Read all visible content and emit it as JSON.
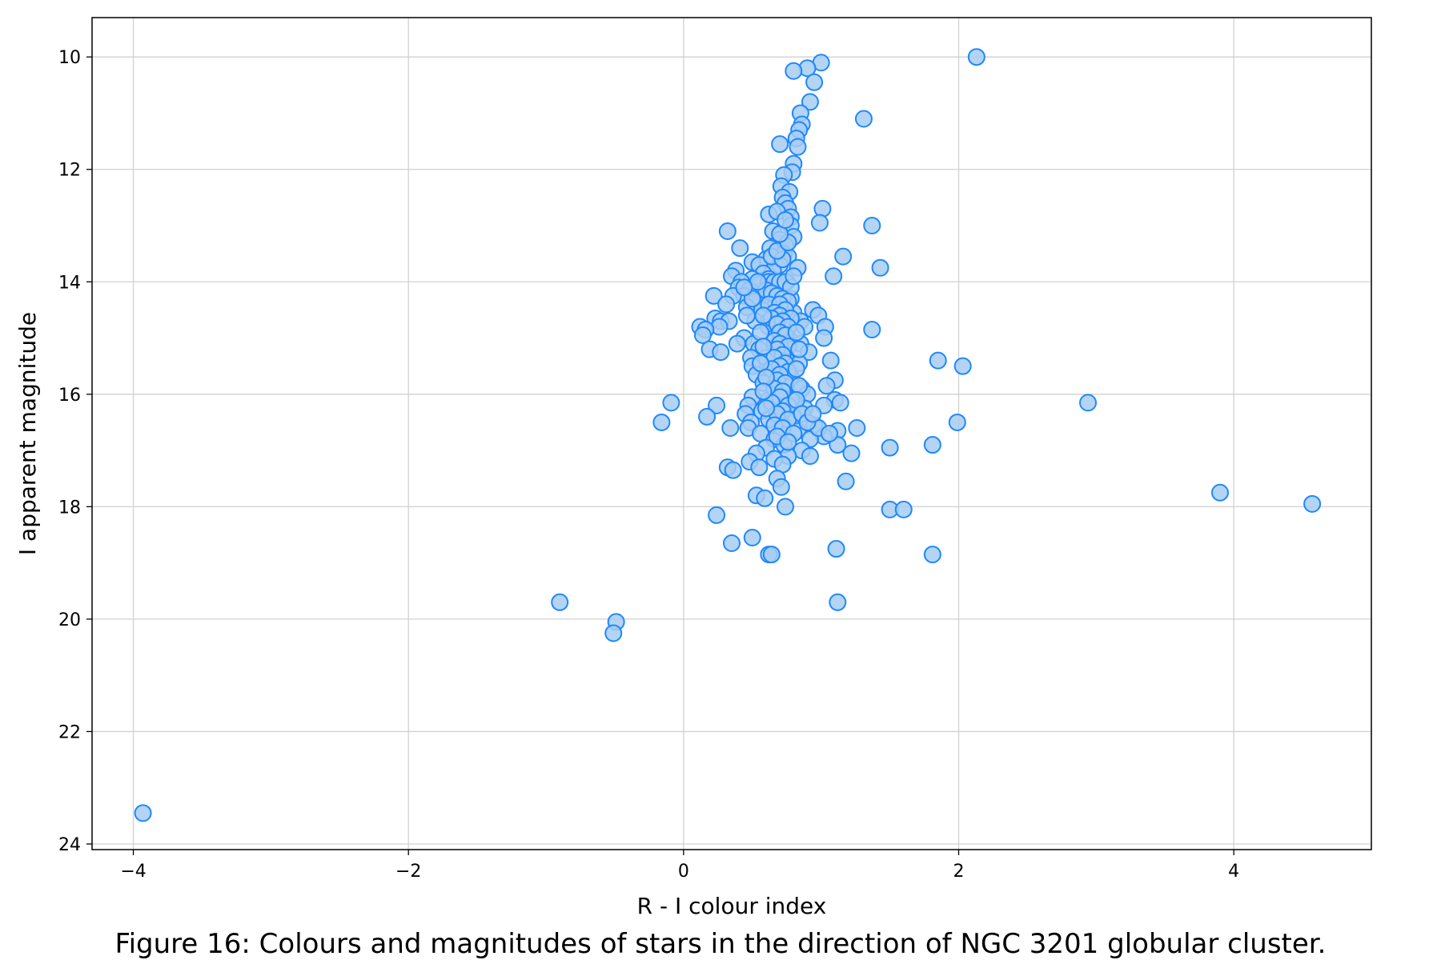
{
  "caption": "Figure 16: Colours and magnitudes of stars in the direction of NGC 3201 globular cluster.",
  "colors": {
    "marker_fill": "#a7cdf2",
    "marker_edge": "#1e88ff",
    "grid": "#d0d0d0",
    "axis": "#000000"
  },
  "chart_data": {
    "type": "scatter",
    "xlabel": "R - I colour index",
    "ylabel": "I apparent magnitude",
    "xlim": [
      -4.3,
      5.0
    ],
    "ylim": [
      24.1,
      9.3
    ],
    "y_inverted": true,
    "grid": true,
    "xticks": [
      -4,
      -2,
      0,
      2,
      4
    ],
    "xtick_labels": [
      "−4",
      "−2",
      "0",
      "2",
      "4"
    ],
    "yticks": [
      10,
      12,
      14,
      16,
      18,
      20,
      22,
      24
    ],
    "ytick_labels": [
      "10",
      "12",
      "14",
      "16",
      "18",
      "20",
      "22",
      "24"
    ],
    "points": [
      [
        2.13,
        10.0
      ],
      [
        1.0,
        10.1
      ],
      [
        0.9,
        10.2
      ],
      [
        0.8,
        10.25
      ],
      [
        0.95,
        10.45
      ],
      [
        0.92,
        10.8
      ],
      [
        0.85,
        11.0
      ],
      [
        1.31,
        11.1
      ],
      [
        0.86,
        11.2
      ],
      [
        0.84,
        11.3
      ],
      [
        0.82,
        11.45
      ],
      [
        0.83,
        11.6
      ],
      [
        0.7,
        11.55
      ],
      [
        0.8,
        11.9
      ],
      [
        0.79,
        12.05
      ],
      [
        0.73,
        12.1
      ],
      [
        0.71,
        12.3
      ],
      [
        0.77,
        12.4
      ],
      [
        0.72,
        12.5
      ],
      [
        0.74,
        12.6
      ],
      [
        0.76,
        12.7
      ],
      [
        1.01,
        12.7
      ],
      [
        0.62,
        12.8
      ],
      [
        0.68,
        12.75
      ],
      [
        0.78,
        12.85
      ],
      [
        0.99,
        12.95
      ],
      [
        1.37,
        13.0
      ],
      [
        0.78,
        13.0
      ],
      [
        0.32,
        13.1
      ],
      [
        0.65,
        13.1
      ],
      [
        0.8,
        13.2
      ],
      [
        0.7,
        13.25
      ],
      [
        0.74,
        13.35
      ],
      [
        0.63,
        13.4
      ],
      [
        0.41,
        13.4
      ],
      [
        0.73,
        13.5
      ],
      [
        0.76,
        13.55
      ],
      [
        1.16,
        13.55
      ],
      [
        0.6,
        13.6
      ],
      [
        0.5,
        13.65
      ],
      [
        0.55,
        13.7
      ],
      [
        0.7,
        13.7
      ],
      [
        0.83,
        13.75
      ],
      [
        1.43,
        13.75
      ],
      [
        0.38,
        13.8
      ],
      [
        0.65,
        13.8
      ],
      [
        0.58,
        13.85
      ],
      [
        1.09,
        13.9
      ],
      [
        0.35,
        13.9
      ],
      [
        0.5,
        13.95
      ],
      [
        0.62,
        13.95
      ],
      [
        0.75,
        14.0
      ],
      [
        0.42,
        14.0
      ],
      [
        0.55,
        14.05
      ],
      [
        0.68,
        14.05
      ],
      [
        0.4,
        14.1
      ],
      [
        0.48,
        14.15
      ],
      [
        0.58,
        14.2
      ],
      [
        0.72,
        14.2
      ],
      [
        0.44,
        14.25
      ],
      [
        0.36,
        14.25
      ],
      [
        0.22,
        14.25
      ],
      [
        0.6,
        14.3
      ],
      [
        0.52,
        14.35
      ],
      [
        0.78,
        14.3
      ],
      [
        0.31,
        14.4
      ],
      [
        0.46,
        14.45
      ],
      [
        0.66,
        14.45
      ],
      [
        0.94,
        14.5
      ],
      [
        0.57,
        14.5
      ],
      [
        0.8,
        14.55
      ],
      [
        0.98,
        14.6
      ],
      [
        0.23,
        14.65
      ],
      [
        0.27,
        14.7
      ],
      [
        0.33,
        14.7
      ],
      [
        0.52,
        14.7
      ],
      [
        0.62,
        14.7
      ],
      [
        0.85,
        14.7
      ],
      [
        0.12,
        14.8
      ],
      [
        0.26,
        14.8
      ],
      [
        0.62,
        14.8
      ],
      [
        1.03,
        14.8
      ],
      [
        0.88,
        14.8
      ],
      [
        0.16,
        14.85
      ],
      [
        0.72,
        14.85
      ],
      [
        1.37,
        14.85
      ],
      [
        0.14,
        14.95
      ],
      [
        0.44,
        15.0
      ],
      [
        0.66,
        15.0
      ],
      [
        1.02,
        15.0
      ],
      [
        0.78,
        15.05
      ],
      [
        0.39,
        15.1
      ],
      [
        0.51,
        15.1
      ],
      [
        0.85,
        15.1
      ],
      [
        0.19,
        15.2
      ],
      [
        0.27,
        15.25
      ],
      [
        0.55,
        15.2
      ],
      [
        0.72,
        15.25
      ],
      [
        0.91,
        15.25
      ],
      [
        0.6,
        15.35
      ],
      [
        0.49,
        15.35
      ],
      [
        0.75,
        15.4
      ],
      [
        1.07,
        15.4
      ],
      [
        1.85,
        15.4
      ],
      [
        0.84,
        15.45
      ],
      [
        0.5,
        15.5
      ],
      [
        2.03,
        15.5
      ],
      [
        0.63,
        15.55
      ],
      [
        0.71,
        15.6
      ],
      [
        0.53,
        15.65
      ],
      [
        0.78,
        15.7
      ],
      [
        1.1,
        15.75
      ],
      [
        0.58,
        15.8
      ],
      [
        0.66,
        15.85
      ],
      [
        1.04,
        15.85
      ],
      [
        0.86,
        15.9
      ],
      [
        0.73,
        15.95
      ],
      [
        0.9,
        16.0
      ],
      [
        0.5,
        16.05
      ],
      [
        0.62,
        16.1
      ],
      [
        0.78,
        16.1
      ],
      [
        1.1,
        16.1
      ],
      [
        1.14,
        16.15
      ],
      [
        -0.09,
        16.15
      ],
      [
        2.94,
        16.15
      ],
      [
        0.47,
        16.2
      ],
      [
        0.24,
        16.2
      ],
      [
        0.69,
        16.2
      ],
      [
        1.02,
        16.2
      ],
      [
        0.88,
        16.25
      ],
      [
        0.57,
        16.3
      ],
      [
        0.45,
        16.35
      ],
      [
        0.17,
        16.4
      ],
      [
        0.8,
        16.4
      ],
      [
        0.62,
        16.45
      ],
      [
        -0.16,
        16.5
      ],
      [
        0.49,
        16.5
      ],
      [
        1.99,
        16.5
      ],
      [
        0.72,
        16.55
      ],
      [
        0.95,
        16.55
      ],
      [
        0.34,
        16.6
      ],
      [
        0.47,
        16.6
      ],
      [
        1.26,
        16.6
      ],
      [
        0.83,
        16.65
      ],
      [
        1.12,
        16.65
      ],
      [
        0.56,
        16.7
      ],
      [
        1.02,
        16.75
      ],
      [
        0.66,
        16.8
      ],
      [
        0.92,
        16.8
      ],
      [
        1.12,
        16.9
      ],
      [
        0.73,
        16.9
      ],
      [
        1.81,
        16.9
      ],
      [
        0.6,
        16.95
      ],
      [
        1.5,
        16.95
      ],
      [
        0.86,
        17.0
      ],
      [
        1.22,
        17.05
      ],
      [
        0.53,
        17.05
      ],
      [
        0.92,
        17.1
      ],
      [
        0.76,
        17.1
      ],
      [
        0.66,
        17.15
      ],
      [
        0.48,
        17.2
      ],
      [
        0.55,
        17.3
      ],
      [
        0.32,
        17.3
      ],
      [
        0.36,
        17.35
      ],
      [
        0.72,
        17.25
      ],
      [
        0.68,
        17.5
      ],
      [
        1.18,
        17.55
      ],
      [
        0.71,
        17.65
      ],
      [
        3.9,
        17.75
      ],
      [
        0.53,
        17.8
      ],
      [
        0.59,
        17.85
      ],
      [
        4.57,
        17.95
      ],
      [
        0.74,
        18.0
      ],
      [
        1.5,
        18.05
      ],
      [
        1.6,
        18.05
      ],
      [
        0.24,
        18.15
      ],
      [
        0.5,
        18.55
      ],
      [
        0.35,
        18.65
      ],
      [
        1.11,
        18.75
      ],
      [
        1.81,
        18.85
      ],
      [
        0.62,
        18.85
      ],
      [
        0.64,
        18.85
      ],
      [
        -0.9,
        19.7
      ],
      [
        1.12,
        19.7
      ],
      [
        -0.49,
        20.05
      ],
      [
        -0.51,
        20.25
      ],
      [
        -3.93,
        23.45
      ],
      [
        0.62,
        14.0
      ],
      [
        0.66,
        14.0
      ],
      [
        0.7,
        14.0
      ],
      [
        0.74,
        14.0
      ],
      [
        0.78,
        14.1
      ],
      [
        0.6,
        14.15
      ],
      [
        0.64,
        14.2
      ],
      [
        0.68,
        14.25
      ],
      [
        0.72,
        14.3
      ],
      [
        0.76,
        14.35
      ],
      [
        0.62,
        14.4
      ],
      [
        0.7,
        14.4
      ],
      [
        0.74,
        14.5
      ],
      [
        0.66,
        14.55
      ],
      [
        0.7,
        14.6
      ],
      [
        0.78,
        14.65
      ],
      [
        0.64,
        14.65
      ],
      [
        0.72,
        14.7
      ],
      [
        0.68,
        14.75
      ],
      [
        0.76,
        14.8
      ],
      [
        0.7,
        14.9
      ],
      [
        0.74,
        14.95
      ],
      [
        0.66,
        15.05
      ],
      [
        0.7,
        15.1
      ],
      [
        0.76,
        15.15
      ],
      [
        0.68,
        15.2
      ],
      [
        0.72,
        15.3
      ],
      [
        0.66,
        15.35
      ],
      [
        0.74,
        15.45
      ],
      [
        0.7,
        15.5
      ],
      [
        0.64,
        15.55
      ],
      [
        0.76,
        15.6
      ],
      [
        0.7,
        15.65
      ],
      [
        0.68,
        15.75
      ],
      [
        0.74,
        15.8
      ],
      [
        0.66,
        15.9
      ],
      [
        0.72,
        15.95
      ],
      [
        0.7,
        16.05
      ],
      [
        0.64,
        16.15
      ],
      [
        0.76,
        16.2
      ],
      [
        0.72,
        16.3
      ],
      [
        0.68,
        16.35
      ],
      [
        0.76,
        16.45
      ],
      [
        0.66,
        16.55
      ],
      [
        0.72,
        16.6
      ],
      [
        0.8,
        16.7
      ],
      [
        0.68,
        16.75
      ],
      [
        0.76,
        16.85
      ],
      [
        0.58,
        14.6
      ],
      [
        0.56,
        14.9
      ],
      [
        0.58,
        15.15
      ],
      [
        0.56,
        15.45
      ],
      [
        0.6,
        15.7
      ],
      [
        0.58,
        15.95
      ],
      [
        0.6,
        16.25
      ],
      [
        0.82,
        14.9
      ],
      [
        0.84,
        15.2
      ],
      [
        0.82,
        15.55
      ],
      [
        0.84,
        15.85
      ],
      [
        0.82,
        16.1
      ],
      [
        0.86,
        16.35
      ],
      [
        0.8,
        13.9
      ],
      [
        0.64,
        13.55
      ],
      [
        0.72,
        13.6
      ],
      [
        0.68,
        13.45
      ],
      [
        0.76,
        13.3
      ],
      [
        0.7,
        13.15
      ],
      [
        0.74,
        12.9
      ],
      [
        0.54,
        14.0
      ],
      [
        0.5,
        14.3
      ],
      [
        0.46,
        14.6
      ],
      [
        0.44,
        14.1
      ],
      [
        0.98,
        16.6
      ],
      [
        1.06,
        16.7
      ],
      [
        0.9,
        16.5
      ],
      [
        0.94,
        16.35
      ]
    ]
  }
}
